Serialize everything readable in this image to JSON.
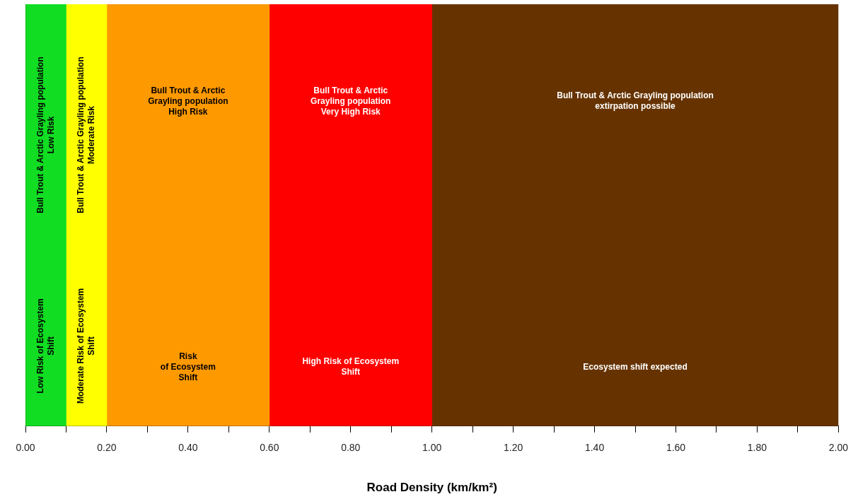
{
  "chart_data": {
    "type": "bar",
    "orientation": "horizontal",
    "stacked": true,
    "categories": [
      null
    ],
    "xlabel": "Road Density (km/km²)",
    "xlim": [
      0,
      2
    ],
    "xticks": [
      {
        "value": 0,
        "label": "0.00"
      },
      {
        "value": 0.1,
        "label": null
      },
      {
        "value": 0.2,
        "label": "0.20"
      },
      {
        "value": 0.3,
        "label": null
      },
      {
        "value": 0.4,
        "label": "0.40"
      },
      {
        "value": 0.5,
        "label": null
      },
      {
        "value": 0.6,
        "label": "0.60"
      },
      {
        "value": 0.7,
        "label": null
      },
      {
        "value": 0.8,
        "label": "0.80"
      },
      {
        "value": 0.9,
        "label": null
      },
      {
        "value": 1,
        "label": "1.00"
      },
      {
        "value": 1.1,
        "label": null
      },
      {
        "value": 1.2,
        "label": "1.20"
      },
      {
        "value": 1.3,
        "label": null
      },
      {
        "value": 1.4,
        "label": "1.40"
      },
      {
        "value": 1.5,
        "label": null
      },
      {
        "value": 1.6,
        "label": "1.60"
      },
      {
        "value": 1.7,
        "label": null
      },
      {
        "value": 1.8,
        "label": "1.80"
      },
      {
        "value": 1.9,
        "label": null
      },
      {
        "value": 2,
        "label": "2.00"
      }
    ],
    "series": [
      {
        "name": "Bull Trout & Arctic Grayling population\nLow Risk",
        "color": "#11dd22",
        "values": [
          0.1
        ]
      },
      {
        "name": "Bull Trout & Arctic Grayling population\nModerate Risk",
        "color": "#ffff00",
        "values": [
          0.1
        ]
      },
      {
        "name": "Bull Trout & Arctic\nGrayling population\nHigh Risk",
        "color": "#ff9900",
        "values": [
          0.4
        ]
      },
      {
        "name": "Bull Trout & Arctic\nGrayling population\nVery High Risk",
        "color": "#ff0000",
        "values": [
          0.4
        ]
      },
      {
        "name": "Bull Trout & Arctic Grayling population\nextirpation possible",
        "color": "#663300",
        "values": [
          1
        ]
      }
    ],
    "annotations": [
      "Low Risk of Ecosystem\nShift",
      "Moderate Risk of Ecosystem\nShift",
      "Risk\nof Ecosystem\nShift",
      "High Risk of Ecosystem\nShift",
      "Ecosystem shift expected"
    ]
  }
}
